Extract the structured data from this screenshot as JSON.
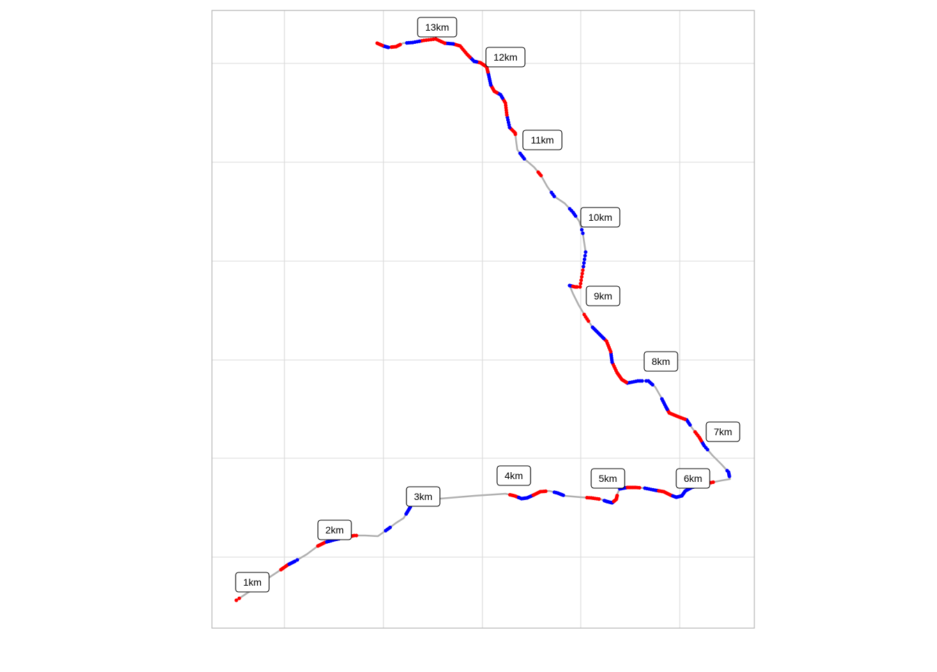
{
  "map": {
    "type": "route-map",
    "grid": true,
    "colors": {
      "background": "#ffffff",
      "panel_border": "#b3b3b3",
      "grid_line": "#d9d9d9",
      "route_line": "#b0b0b0",
      "point_red": "#ff0000",
      "point_blue": "#0000ff",
      "label_border": "#000000",
      "label_fill": "#ffffff",
      "label_text": "#000000"
    },
    "km_labels": [
      {
        "text": "1km"
      },
      {
        "text": "2km"
      },
      {
        "text": "3km"
      },
      {
        "text": "4km"
      },
      {
        "text": "5km"
      },
      {
        "text": "6km"
      },
      {
        "text": "7km"
      },
      {
        "text": "8km"
      },
      {
        "text": "9km"
      },
      {
        "text": "10km"
      },
      {
        "text": "11km"
      },
      {
        "text": "12km"
      },
      {
        "text": "13km"
      }
    ]
  }
}
